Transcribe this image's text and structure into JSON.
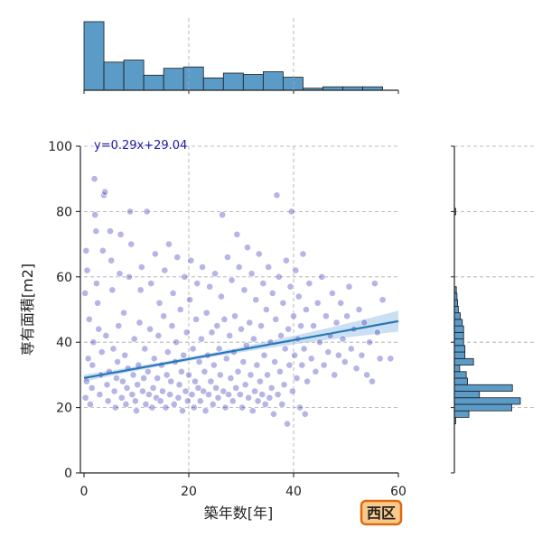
{
  "colors": {
    "hist_fill": "#5b9bc8",
    "hist_edge": "#1b1b1b",
    "scatter_fill": "#2a2ab8",
    "regression_line": "#2878b8",
    "ci_band": "#a9c9ea",
    "equation_text": "#1a1aa8",
    "grid": "#a8a8a8",
    "badge_fill": "#f8c98a",
    "badge_edge": "#e06a10"
  },
  "chart_data": {
    "type": "scatter",
    "title": "",
    "xlabel": "築年数[年]",
    "ylabel": "専有面積[m2]",
    "xlim": [
      0,
      60
    ],
    "ylim": [
      0,
      100
    ],
    "x_ticks": [
      0,
      20,
      40,
      60
    ],
    "y_ticks": [
      0,
      20,
      40,
      60,
      80,
      100
    ],
    "grid": true,
    "regression": {
      "slope": 0.29,
      "intercept": 29.04,
      "equation_label": "y=0.29x+29.04",
      "x_range": [
        0,
        60
      ]
    },
    "badge_label": "西区",
    "marginal_x_histogram": {
      "bin_edges": [
        0,
        3.8,
        7.6,
        11.4,
        15.2,
        19,
        22.8,
        26.6,
        30.4,
        34.2,
        38,
        41.8,
        45.6,
        49.4,
        53.2,
        57
      ],
      "relative_heights": [
        1.0,
        0.41,
        0.44,
        0.22,
        0.32,
        0.34,
        0.18,
        0.25,
        0.23,
        0.27,
        0.19,
        0.03,
        0.05,
        0.05,
        0.05
      ]
    },
    "marginal_y_histogram": {
      "bin_edges": [
        15,
        17,
        19,
        21,
        23,
        25,
        27,
        29,
        31,
        33,
        35,
        37,
        39,
        41,
        43,
        45,
        47,
        49,
        51,
        53,
        55,
        57,
        59,
        61,
        63,
        65,
        67,
        69,
        71,
        73,
        75,
        77,
        79,
        81
      ],
      "relative_heights": [
        0.02,
        0.22,
        0.87,
        1.0,
        0.38,
        0.88,
        0.2,
        0.18,
        0.08,
        0.29,
        0.16,
        0.16,
        0.14,
        0.14,
        0.14,
        0.12,
        0.09,
        0.06,
        0.05,
        0.04,
        0.03,
        0,
        0,
        0,
        0,
        0,
        0,
        0,
        0,
        0,
        0,
        0,
        0.02
      ]
    },
    "sample_points": [
      [
        0.3,
        23
      ],
      [
        0.5,
        28
      ],
      [
        0.8,
        35
      ],
      [
        1.0,
        47
      ],
      [
        0.2,
        55
      ],
      [
        0.6,
        62
      ],
      [
        0.4,
        68
      ],
      [
        1.2,
        21
      ],
      [
        1.5,
        26
      ],
      [
        1.6,
        33
      ],
      [
        1.8,
        40
      ],
      [
        2.0,
        90
      ],
      [
        2.1,
        79
      ],
      [
        2.3,
        74
      ],
      [
        2.4,
        58
      ],
      [
        2.6,
        52
      ],
      [
        2.8,
        44
      ],
      [
        3.0,
        24
      ],
      [
        3.2,
        30
      ],
      [
        3.4,
        37
      ],
      [
        3.6,
        68
      ],
      [
        3.8,
        85
      ],
      [
        4.0,
        86
      ],
      [
        4.2,
        42
      ],
      [
        4.4,
        27
      ],
      [
        4.6,
        22
      ],
      [
        4.8,
        31
      ],
      [
        5.0,
        74
      ],
      [
        5.2,
        65
      ],
      [
        5.4,
        56
      ],
      [
        5.6,
        38
      ],
      [
        5.8,
        25
      ],
      [
        6.0,
        20
      ],
      [
        6.2,
        29
      ],
      [
        6.4,
        34
      ],
      [
        6.6,
        45
      ],
      [
        6.8,
        61
      ],
      [
        7.0,
        73
      ],
      [
        7.2,
        23
      ],
      [
        7.4,
        28
      ],
      [
        7.6,
        49
      ],
      [
        7.8,
        36
      ],
      [
        8.0,
        21
      ],
      [
        8.2,
        26
      ],
      [
        8.4,
        32
      ],
      [
        8.6,
        60
      ],
      [
        8.8,
        80
      ],
      [
        9.0,
        70
      ],
      [
        9.2,
        24
      ],
      [
        9.4,
        30
      ],
      [
        9.6,
        41
      ],
      [
        9.8,
        22
      ],
      [
        10.0,
        19
      ],
      [
        10.2,
        27
      ],
      [
        10.4,
        33
      ],
      [
        10.6,
        46
      ],
      [
        10.8,
        56
      ],
      [
        11.0,
        63
      ],
      [
        11.2,
        25
      ],
      [
        11.4,
        29
      ],
      [
        11.6,
        38
      ],
      [
        11.8,
        21
      ],
      [
        12.0,
        80
      ],
      [
        12.2,
        31
      ],
      [
        12.4,
        24
      ],
      [
        12.6,
        44
      ],
      [
        12.8,
        58
      ],
      [
        13.0,
        20
      ],
      [
        13.2,
        26
      ],
      [
        13.4,
        35
      ],
      [
        13.6,
        67
      ],
      [
        13.8,
        23
      ],
      [
        14.0,
        29
      ],
      [
        14.2,
        42
      ],
      [
        14.4,
        52
      ],
      [
        14.6,
        22
      ],
      [
        14.8,
        33
      ],
      [
        15.0,
        25
      ],
      [
        15.2,
        48
      ],
      [
        15.4,
        62
      ],
      [
        15.6,
        20
      ],
      [
        15.8,
        30
      ],
      [
        16.0,
        37
      ],
      [
        16.2,
        70
      ],
      [
        16.4,
        24
      ],
      [
        16.6,
        28
      ],
      [
        16.8,
        45
      ],
      [
        17.0,
        55
      ],
      [
        17.2,
        21
      ],
      [
        17.4,
        34
      ],
      [
        17.6,
        40
      ],
      [
        17.8,
        66
      ],
      [
        18.0,
        23
      ],
      [
        18.2,
        27
      ],
      [
        18.4,
        50
      ],
      [
        18.6,
        31
      ],
      [
        18.8,
        19
      ],
      [
        19.0,
        36
      ],
      [
        19.2,
        60
      ],
      [
        19.4,
        25
      ],
      [
        19.6,
        43
      ],
      [
        19.8,
        22
      ],
      [
        20.0,
        30
      ],
      [
        20.2,
        53
      ],
      [
        20.4,
        65
      ],
      [
        20.6,
        24
      ],
      [
        20.8,
        38
      ],
      [
        21.0,
        20
      ],
      [
        21.2,
        28
      ],
      [
        21.4,
        47
      ],
      [
        21.6,
        58
      ],
      [
        21.8,
        26
      ],
      [
        22.0,
        34
      ],
      [
        22.2,
        22
      ],
      [
        22.4,
        41
      ],
      [
        22.6,
        63
      ],
      [
        22.8,
        25
      ],
      [
        23.0,
        31
      ],
      [
        23.2,
        19
      ],
      [
        23.4,
        49
      ],
      [
        23.6,
        36
      ],
      [
        23.8,
        24
      ],
      [
        24.0,
        57
      ],
      [
        24.2,
        28
      ],
      [
        24.4,
        43
      ],
      [
        24.6,
        21
      ],
      [
        24.8,
        33
      ],
      [
        25.0,
        61
      ],
      [
        25.2,
        26
      ],
      [
        25.4,
        45
      ],
      [
        25.6,
        23
      ],
      [
        25.8,
        38
      ],
      [
        26.0,
        30
      ],
      [
        26.2,
        54
      ],
      [
        26.4,
        79
      ],
      [
        26.6,
        25
      ],
      [
        26.8,
        47
      ],
      [
        27.0,
        20
      ],
      [
        27.2,
        35
      ],
      [
        27.4,
        66
      ],
      [
        27.6,
        24
      ],
      [
        27.8,
        42
      ],
      [
        28.0,
        29
      ],
      [
        28.2,
        59
      ],
      [
        28.4,
        22
      ],
      [
        28.6,
        37
      ],
      [
        28.8,
        48
      ],
      [
        29.0,
        26
      ],
      [
        29.2,
        73
      ],
      [
        29.4,
        31
      ],
      [
        29.6,
        63
      ],
      [
        29.8,
        24
      ],
      [
        30.0,
        44
      ],
      [
        30.2,
        20
      ],
      [
        30.4,
        34
      ],
      [
        30.6,
        56
      ],
      [
        30.8,
        27
      ],
      [
        31.0,
        39
      ],
      [
        31.2,
        69
      ],
      [
        31.4,
        23
      ],
      [
        31.6,
        46
      ],
      [
        31.8,
        30
      ],
      [
        32.0,
        61
      ],
      [
        32.2,
        19
      ],
      [
        32.4,
        41
      ],
      [
        32.6,
        25
      ],
      [
        32.8,
        53
      ],
      [
        33.0,
        33
      ],
      [
        33.2,
        22
      ],
      [
        33.4,
        67
      ],
      [
        33.6,
        28
      ],
      [
        33.8,
        45
      ],
      [
        34.0,
        24
      ],
      [
        34.2,
        58
      ],
      [
        34.4,
        36
      ],
      [
        34.6,
        21
      ],
      [
        34.8,
        50
      ],
      [
        35.0,
        30
      ],
      [
        35.2,
        63
      ],
      [
        35.4,
        23
      ],
      [
        35.6,
        40
      ],
      [
        35.8,
        26
      ],
      [
        36.0,
        55
      ],
      [
        36.2,
        18
      ],
      [
        36.4,
        34
      ],
      [
        36.6,
        47
      ],
      [
        36.8,
        85
      ],
      [
        37.0,
        24
      ],
      [
        37.2,
        60
      ],
      [
        37.4,
        31
      ],
      [
        37.6,
        42
      ],
      [
        37.8,
        21
      ],
      [
        38.0,
        52
      ],
      [
        38.2,
        27
      ],
      [
        38.4,
        38
      ],
      [
        38.6,
        65
      ],
      [
        38.8,
        15
      ],
      [
        39.0,
        44
      ],
      [
        39.2,
        33
      ],
      [
        39.4,
        57
      ],
      [
        39.6,
        80
      ],
      [
        39.8,
        25
      ],
      [
        40.0,
        48
      ],
      [
        40.2,
        36
      ],
      [
        40.4,
        62
      ],
      [
        40.6,
        29
      ],
      [
        40.8,
        41
      ],
      [
        41.0,
        54
      ],
      [
        41.2,
        20
      ],
      [
        41.4,
        45
      ],
      [
        41.6,
        33
      ],
      [
        41.8,
        67
      ],
      [
        42.0,
        38
      ],
      [
        42.2,
        18
      ],
      [
        42.4,
        50
      ],
      [
        42.6,
        28
      ],
      [
        43.0,
        58
      ],
      [
        43.4,
        35
      ],
      [
        43.8,
        45
      ],
      [
        44.2,
        31
      ],
      [
        44.6,
        52
      ],
      [
        45.0,
        40
      ],
      [
        45.4,
        60
      ],
      [
        45.8,
        33
      ],
      [
        46.2,
        48
      ],
      [
        46.6,
        37
      ],
      [
        47.0,
        42
      ],
      [
        47.4,
        55
      ],
      [
        47.8,
        30
      ],
      [
        48.2,
        46
      ],
      [
        48.6,
        36
      ],
      [
        49.0,
        52
      ],
      [
        49.4,
        41
      ],
      [
        49.8,
        34
      ],
      [
        50.2,
        48
      ],
      [
        50.6,
        57
      ],
      [
        51.0,
        38
      ],
      [
        51.5,
        44
      ],
      [
        52.0,
        32
      ],
      [
        52.5,
        50
      ],
      [
        53.0,
        36
      ],
      [
        53.5,
        46
      ],
      [
        54.0,
        30
      ],
      [
        54.5,
        40
      ],
      [
        55.0,
        28
      ],
      [
        55.5,
        58
      ],
      [
        56.0,
        43
      ],
      [
        56.5,
        35
      ],
      [
        57.0,
        53
      ],
      [
        58.5,
        35
      ]
    ]
  }
}
